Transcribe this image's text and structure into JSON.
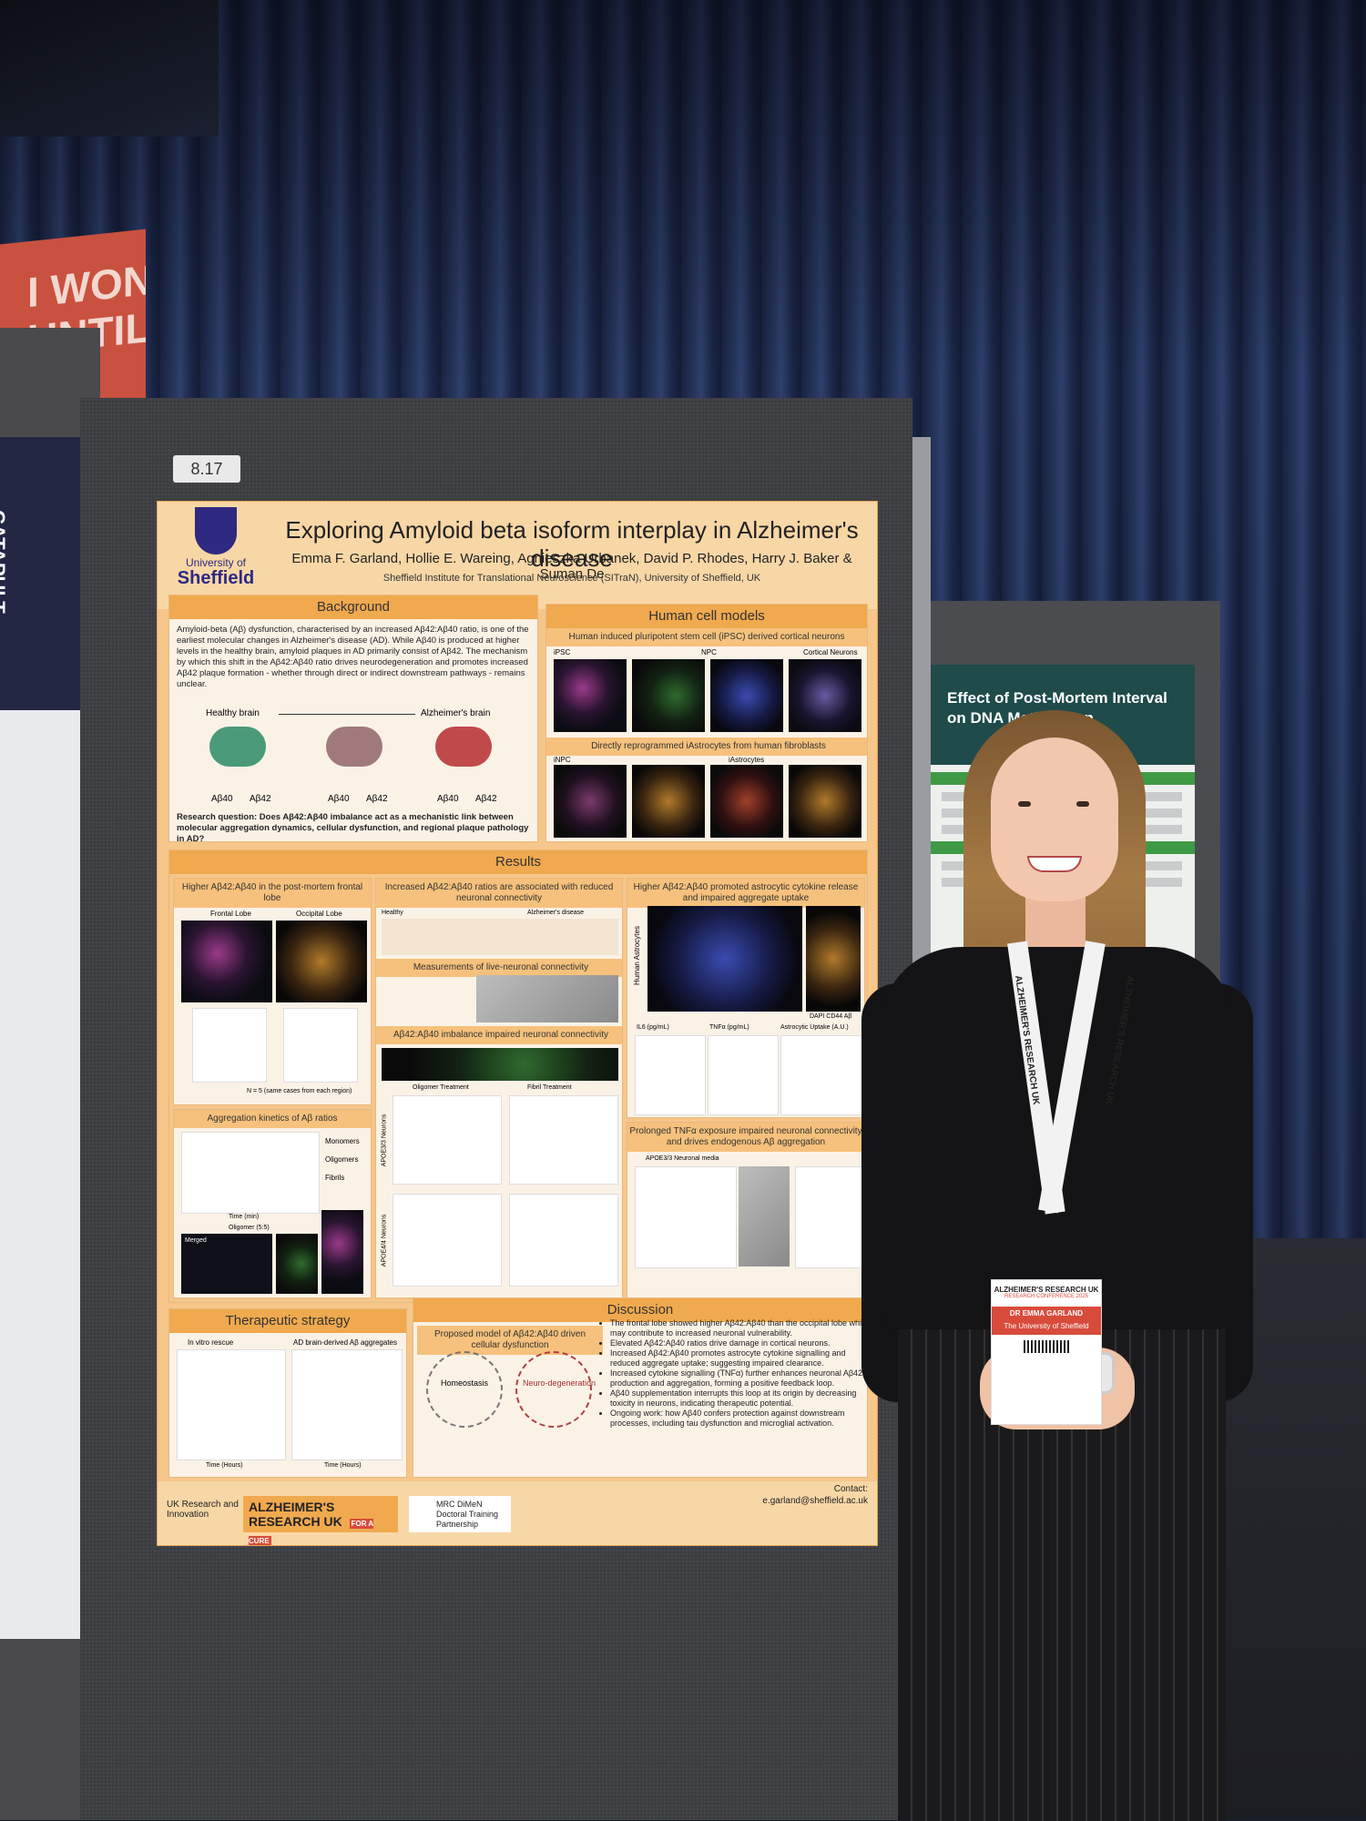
{
  "scene": {
    "banner_text": "I WON'T\nUNTIL",
    "left_poster_brand": "CATAPULT",
    "board_number": "8.17",
    "right_poster_title": "Effect of Post-Mortem Interval on DNA Methylation"
  },
  "poster": {
    "university_line1": "University of",
    "university_line2": "Sheffield",
    "title": "Exploring Amyloid beta isoform interplay in Alzheimer's disease",
    "authors": "Emma F. Garland, Hollie E. Wareing, Agnieszka Urbanek, David P. Rhodes, Harry J. Baker & Suman De",
    "affiliation": "Sheffield Institute for Translational Neuroscience (SITraN), University of Sheffield, UK",
    "background": {
      "heading": "Background",
      "text": "Amyloid-beta (Aβ) dysfunction, characterised by an increased Aβ42:Aβ40 ratio, is one of the earliest molecular changes in Alzheimer's disease (AD). While Aβ40 is produced at higher levels in the healthy brain, amyloid plaques in AD primarily consist of Aβ42. The mechanism by which this shift in the Aβ42:Aβ40 ratio drives neurodegeneration and promotes increased Aβ42 plaque formation - whether through direct or indirect downstream pathways - remains unclear.",
      "healthy_label": "Healthy brain",
      "ad_label": "Alzheimer's brain",
      "ab40": "Aβ40",
      "ab42": "Aβ42",
      "research_question": "Research question: Does Aβ42:Aβ40 imbalance act as a mechanistic link between molecular aggregation dynamics, cellular dysfunction, and regional plaque pathology in AD?"
    },
    "human_cell_models": {
      "heading": "Human cell models",
      "sub1": "Human induced pluripotent stem cell (iPSC) derived cortical neurons",
      "ipsc": "iPSC",
      "npc": "NPC",
      "cortical": "Cortical Neurons",
      "sub2": "Directly reprogrammed iAstrocytes from human fibroblasts",
      "inpc": "iNPC",
      "iastro": "iAstrocytes"
    },
    "results": {
      "heading": "Results",
      "p1_title": "Higher Aβ42:Aβ40 in the post-mortem frontal lobe",
      "frontal": "Frontal Lobe",
      "occipital": "Occipital Lobe",
      "n_note": "N = 5 (same cases from each region)",
      "p2_title": "Aggregation kinetics of Aβ ratios",
      "monomers": "Monomers",
      "oligomers": "Oligomers",
      "fibrils": "Fibrils",
      "time_min": "Time (min)",
      "oligomer55": "Oligomer (5:5)",
      "merged": "Merged",
      "p3_title": "Increased Aβ42:Aβ40 ratios are associated with reduced neuronal connectivity",
      "healthy": "Healthy",
      "ad_arrow": "Alzheimer's disease",
      "live_neuronal": "Measurements of live-neuronal connectivity",
      "imbalance": "Aβ42:Aβ40 imbalance impaired neuronal connectivity",
      "oligomer_treatment": "Oligomer Treatment",
      "fibril_treatment": "Fibril Treatment",
      "apoe33": "APOE3/3 Neurons",
      "apoe44": "APOE4/4 Neurons",
      "p4_title": "Higher Aβ42:Aβ40 promoted astrocytic cytokine release and impaired aggregate uptake",
      "human_astro": "Human Astrocytes",
      "dapi": "DAPI CD44 Aβ",
      "il6": "IL6 (pg/mL)",
      "tnfa": "TNFα (pg/mL)",
      "uptake": "Astrocytic Uptake (A.U.)",
      "p5_title": "Prolonged TNFα exposure impaired neuronal connectivity and drives endogenous Aβ aggregation",
      "apoe_media": "APOE3/3 Neuronal media"
    },
    "therapeutic": {
      "heading": "Therapeutic strategy",
      "in_vitro": "In vitro rescue",
      "ad_brain": "AD brain-derived Aβ aggregates",
      "time_hours": "Time (Hours)"
    },
    "discussion": {
      "heading": "Discussion",
      "model": "Proposed model of Aβ42:Aβ40 driven cellular dysfunction",
      "homeostasis": "Homeostasis",
      "neurodegeneration": "Neuro-degeneration",
      "bullets": [
        "The frontal lobe showed higher Aβ42:Aβ40 than the occipital lobe which may contribute to increased neuronal vulnerability.",
        "Elevated Aβ42:Aβ40 ratios drive damage in cortical neurons.",
        "Increased Aβ42:Aβ40 promotes astrocyte cytokine signalling and reduced aggregate uptake; suggesting impaired clearance.",
        "Increased cytokine signalling (TNFα) further enhances neuronal Aβ42 production and aggregation, forming a positive feedback loop.",
        "Aβ40 supplementation interrupts this loop at its origin by decreasing toxicity in neurons, indicating therapeutic potential.",
        "Ongoing work: how Aβ40 confers protection against downstream processes, including tau dysfunction and microglial activation."
      ]
    },
    "contact_label": "Contact:",
    "contact_email": "e.garland@sheffield.ac.uk",
    "footer": {
      "ukri": "UK Research and Innovation",
      "aruk": "ALZHEIMER'S RESEARCH UK",
      "aruk_tag": "FOR A CURE",
      "mrc": "MRC DiMeN Doctoral Training Partnership"
    }
  },
  "badge": {
    "org": "ALZHEIMER'S RESEARCH UK",
    "conf": "RESEARCH CONFERENCE 2025",
    "name": "DR EMMA GARLAND",
    "affiliation": "The University of Sheffield"
  },
  "lanyard_text": "ALZHEIMER'S RESEARCH UK"
}
